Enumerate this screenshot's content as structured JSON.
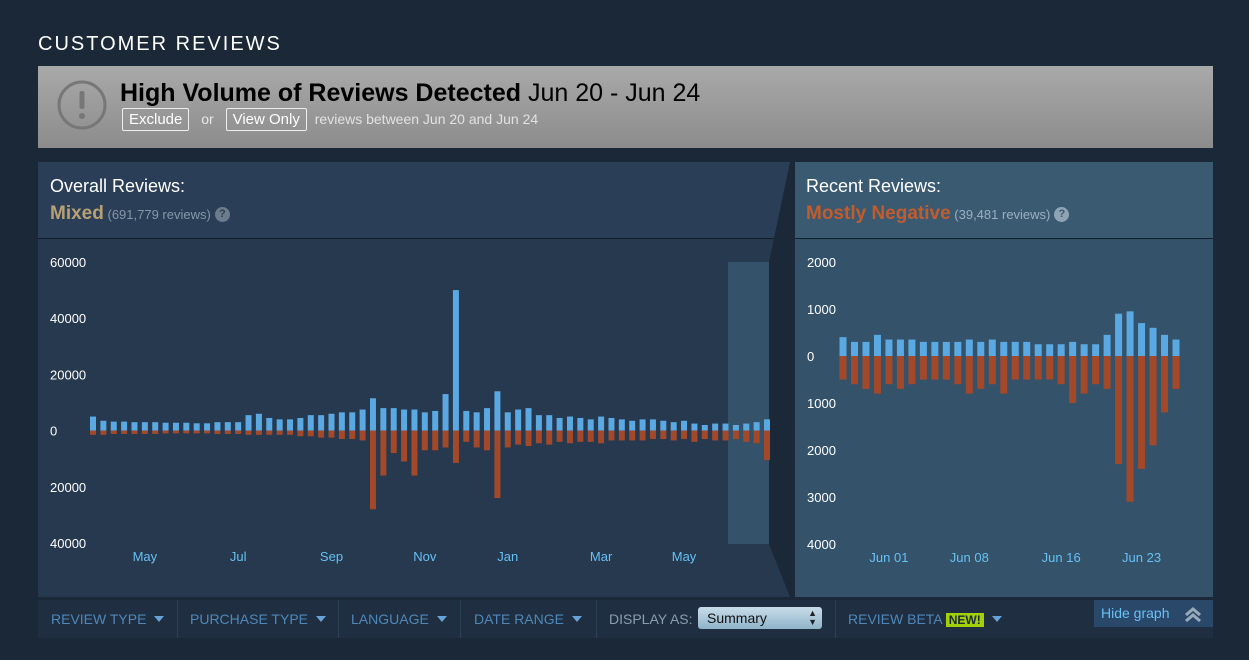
{
  "section_title": "CUSTOMER REVIEWS",
  "alert": {
    "title": "High Volume of Reviews Detected",
    "dates": "Jun 20 - Jun 24",
    "exclude": "Exclude",
    "or": "or",
    "view_only": "View Only",
    "text": "reviews between Jun 20 and Jun 24"
  },
  "overall": {
    "label": "Overall Reviews:",
    "rating": "Mixed",
    "count": "(691,779 reviews)",
    "help": "?"
  },
  "recent": {
    "label": "Recent Reviews:",
    "rating": "Mostly Negative",
    "count": "(39,481 reviews)",
    "help": "?"
  },
  "filters": {
    "review_type": "REVIEW TYPE",
    "purchase_type": "PURCHASE TYPE",
    "language": "LANGUAGE",
    "date_range": "DATE RANGE",
    "display_as": "DISPLAY AS:",
    "display_value": "Summary",
    "review_beta": "REVIEW BETA",
    "new_badge": "NEW!",
    "hide_graph": "Hide graph"
  },
  "chart_data": [
    {
      "type": "bar",
      "categories": [
        null,
        null,
        null,
        null,
        null,
        "May",
        null,
        null,
        null,
        null,
        null,
        null,
        null,
        null,
        "Jul",
        null,
        null,
        null,
        null,
        null,
        null,
        null,
        null,
        "Sep",
        null,
        null,
        null,
        null,
        null,
        null,
        null,
        null,
        "Nov",
        null,
        null,
        null,
        null,
        null,
        null,
        null,
        "Jan",
        null,
        null,
        null,
        null,
        null,
        null,
        null,
        null,
        "Mar",
        null,
        null,
        null,
        null,
        null,
        null,
        null,
        "May",
        null,
        null,
        null,
        null,
        null,
        null,
        null,
        null
      ],
      "series": [
        {
          "color": "#5ba9e2",
          "values": [
            5000,
            3500,
            3200,
            3200,
            3000,
            3000,
            3000,
            2800,
            2800,
            2800,
            2600,
            2600,
            3000,
            3000,
            3000,
            5500,
            6000,
            4500,
            4000,
            4000,
            4500,
            5500,
            5500,
            6000,
            6500,
            6500,
            7500,
            11500,
            8000,
            8000,
            7500,
            7500,
            6500,
            7000,
            13000,
            50000,
            7000,
            6500,
            8000,
            14000,
            6500,
            7500,
            8000,
            5500,
            5500,
            4500,
            5000,
            4500,
            4000,
            5000,
            4500,
            4000,
            3500,
            4000,
            4000,
            3500,
            3000,
            3500,
            2500,
            2000,
            2500,
            2500,
            2000,
            2500,
            3000,
            4000
          ]
        },
        {
          "color": "#a3492a",
          "values": [
            -1500,
            -1500,
            -1200,
            -1200,
            -1200,
            -1200,
            -1200,
            -1000,
            -1000,
            -1000,
            -1000,
            -1000,
            -1200,
            -1200,
            -1200,
            -1500,
            -1500,
            -1500,
            -1500,
            -1500,
            -2000,
            -2000,
            -2500,
            -2500,
            -3000,
            -3000,
            -3500,
            -28000,
            -16000,
            -8000,
            -11000,
            -16000,
            -7000,
            -7000,
            -6000,
            -11500,
            -4000,
            -6000,
            -7000,
            -24000,
            -6000,
            -5000,
            -5500,
            -4500,
            -5000,
            -4000,
            -4500,
            -4000,
            -4000,
            -4500,
            -3500,
            -3500,
            -3500,
            -3500,
            -3000,
            -3000,
            -3500,
            -3000,
            -4000,
            -3000,
            -3500,
            -3500,
            -3000,
            -4000,
            -4500,
            -10500
          ]
        }
      ],
      "ylim": [
        -40000,
        60000
      ],
      "yticks": [
        60000,
        40000,
        20000,
        0,
        {
          "value": -20000,
          "label": "20000"
        },
        {
          "value": -40000,
          "label": "40000"
        }
      ]
    },
    {
      "type": "bar",
      "categories": [
        null,
        null,
        null,
        null,
        "Jun 01",
        null,
        null,
        null,
        null,
        null,
        null,
        "Jun 08",
        null,
        null,
        null,
        null,
        null,
        null,
        null,
        "Jun 16",
        null,
        null,
        null,
        null,
        null,
        null,
        "Jun 23",
        null,
        null,
        null
      ],
      "series": [
        {
          "color": "#5ba9e2",
          "values": [
            400,
            300,
            300,
            450,
            350,
            350,
            350,
            300,
            300,
            300,
            300,
            350,
            300,
            350,
            300,
            300,
            300,
            250,
            250,
            250,
            300,
            250,
            250,
            450,
            900,
            950,
            700,
            600,
            450,
            350
          ]
        },
        {
          "color": "#a3492a",
          "values": [
            -500,
            -600,
            -700,
            -800,
            -600,
            -700,
            -600,
            -500,
            -500,
            -500,
            -600,
            -800,
            -700,
            -600,
            -800,
            -500,
            -500,
            -500,
            -500,
            -600,
            -1000,
            -800,
            -600,
            -700,
            -2300,
            -3100,
            -2400,
            -1900,
            -1200,
            -700
          ]
        }
      ],
      "ylim": [
        -4000,
        2000
      ],
      "yticks": [
        2000,
        1000,
        0,
        {
          "value": -1000,
          "label": "1000"
        },
        {
          "value": -2000,
          "label": "2000"
        },
        {
          "value": -3000,
          "label": "3000"
        },
        {
          "value": -4000,
          "label": "4000"
        }
      ]
    }
  ]
}
